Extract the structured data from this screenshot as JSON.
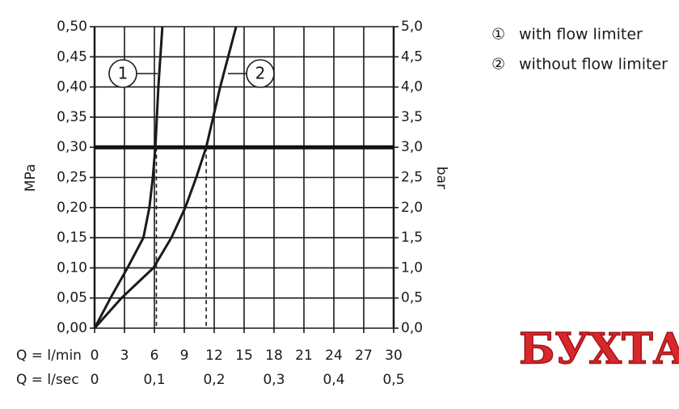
{
  "chart_data": {
    "type": "line",
    "y_label": "MPa",
    "y2_label": "bar",
    "x_label": "Q = l/min",
    "x2_label": "Q = l/sec",
    "xlim": [
      0,
      30
    ],
    "xticks": [
      0,
      3,
      6,
      9,
      12,
      15,
      18,
      21,
      24,
      27,
      30
    ],
    "x2lim": [
      0,
      0.5
    ],
    "x2ticks": [
      0,
      {
        "value": 0.1,
        "label": "0,1"
      },
      {
        "value": 0.2,
        "label": "0,2"
      },
      {
        "value": 0.3,
        "label": "0,3"
      },
      {
        "value": 0.4,
        "label": "0,4"
      },
      {
        "value": 0.5,
        "label": "0,5"
      }
    ],
    "ylim": [
      0,
      0.5
    ],
    "yticks": [
      {
        "value": 0,
        "label": "0,00"
      },
      {
        "value": 0.05,
        "label": "0,05"
      },
      {
        "value": 0.1,
        "label": "0,10"
      },
      {
        "value": 0.15,
        "label": "0,15"
      },
      {
        "value": 0.2,
        "label": "0,20"
      },
      {
        "value": 0.25,
        "label": "0,25"
      },
      {
        "value": 0.3,
        "label": "0,30"
      },
      {
        "value": 0.35,
        "label": "0,35"
      },
      {
        "value": 0.4,
        "label": "0,40"
      },
      {
        "value": 0.45,
        "label": "0,45"
      },
      {
        "value": 0.5,
        "label": "0,50"
      }
    ],
    "y2lim": [
      0,
      5
    ],
    "y2ticks": [
      {
        "value": 0,
        "label": "0,0"
      },
      {
        "value": 0.5,
        "label": "0,5"
      },
      {
        "value": 1,
        "label": "1,0"
      },
      {
        "value": 1.5,
        "label": "1,5"
      },
      {
        "value": 2,
        "label": "2,0"
      },
      {
        "value": 2.5,
        "label": "2,5"
      },
      {
        "value": 3,
        "label": "3,0"
      },
      {
        "value": 3.5,
        "label": "3,5"
      },
      {
        "value": 4,
        "label": "4,0"
      },
      {
        "value": 4.5,
        "label": "4,5"
      },
      {
        "value": 5,
        "label": "5,0"
      }
    ],
    "grid": true,
    "reference_line": 0.3,
    "drop_lines": [
      6.2,
      11.2
    ],
    "series": [
      {
        "label": "1",
        "symbol": "①",
        "name": "with flow limiter",
        "color": "#1a1a1a",
        "x": [
          0,
          1.6,
          3.3,
          4.9,
          5.5,
          5.85,
          6.1,
          6.4,
          6.8
        ],
        "values": [
          0,
          0.05,
          0.1,
          0.15,
          0.2,
          0.25,
          0.3,
          0.4,
          0.5
        ]
      },
      {
        "label": "2",
        "symbol": "②",
        "name": "without flow limiter",
        "color": "#1a1a1a",
        "x": [
          0,
          2.7,
          5.9,
          7.7,
          9.1,
          10.2,
          11.2,
          11.9,
          12.6,
          14.2
        ],
        "values": [
          0,
          0.05,
          0.1,
          0.15,
          0.2,
          0.25,
          0.3,
          0.35,
          0.4,
          0.5
        ]
      }
    ]
  },
  "watermark": "БУХТА"
}
